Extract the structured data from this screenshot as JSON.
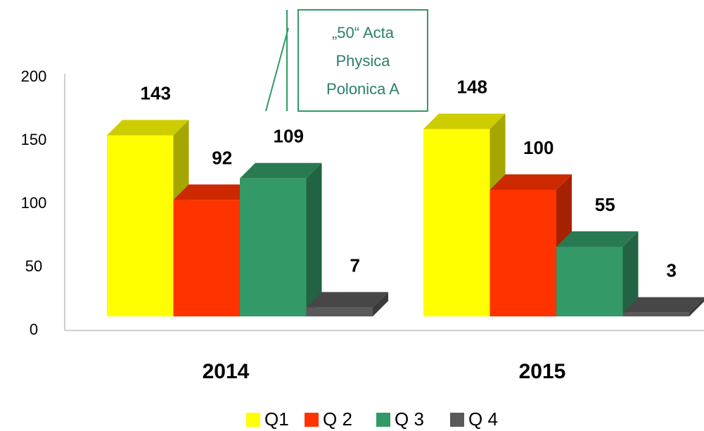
{
  "chart_data": {
    "type": "bar3d",
    "categories": [
      "2014",
      "2015"
    ],
    "series": [
      {
        "name": "Q1",
        "color": "#ffff00",
        "values": [
          143,
          148
        ]
      },
      {
        "name": "Q 2",
        "color": "#ff3300",
        "values": [
          92,
          100
        ]
      },
      {
        "name": "Q 3",
        "color": "#339966",
        "values": [
          109,
          55
        ]
      },
      {
        "name": "Q 4",
        "color": "#595959",
        "values": [
          7,
          3
        ]
      }
    ],
    "ylim": [
      0,
      200
    ],
    "yticks": [
      0,
      50,
      100,
      150,
      200
    ],
    "annotation": [
      "„50“ Acta",
      "Physica",
      "Polonica  A"
    ]
  }
}
